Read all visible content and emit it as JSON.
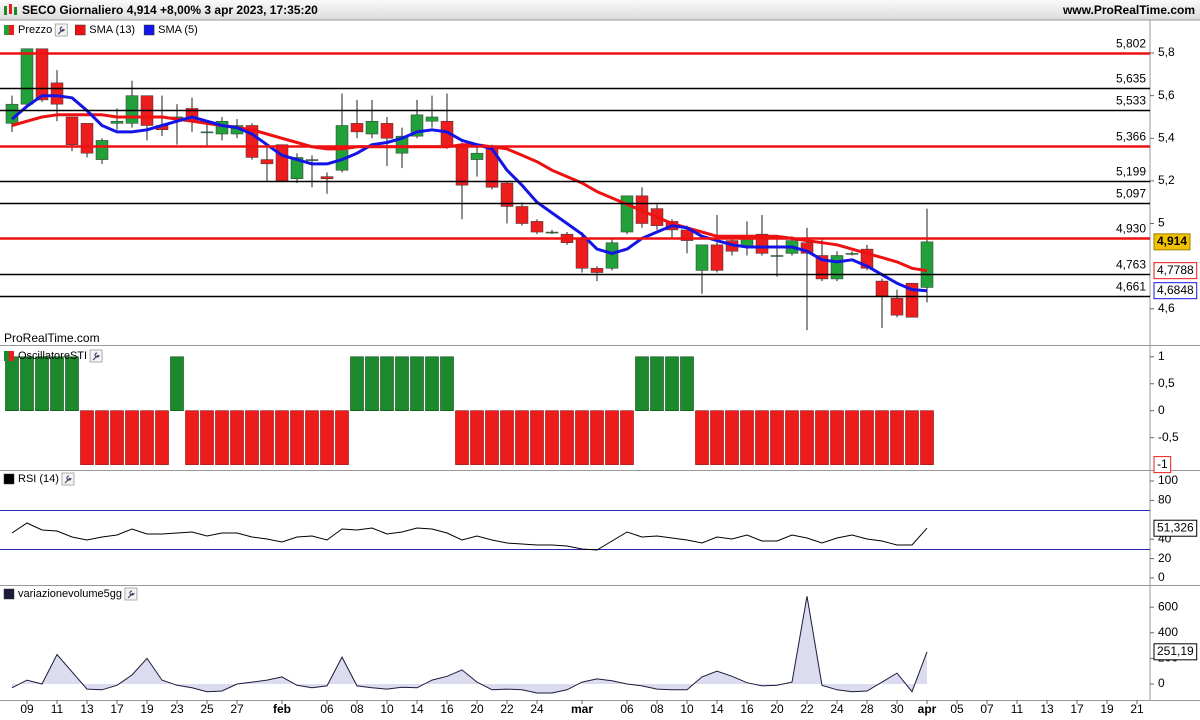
{
  "header": {
    "title": "SECO Giornaliero 4,914 +8,00% 3 apr 2023, 17:35:20",
    "site": "www.ProRealTime.com"
  },
  "chart_data": [
    {
      "type": "candlestick",
      "watermark": "ProRealTime.com",
      "categories": [
        null,
        "09",
        null,
        "11",
        null,
        "13",
        null,
        "17",
        null,
        "19",
        null,
        "23",
        null,
        "25",
        null,
        "27",
        null,
        null,
        "feb",
        null,
        null,
        "06",
        null,
        "08",
        null,
        "10",
        null,
        "14",
        null,
        "16",
        null,
        "20",
        null,
        "22",
        null,
        "24",
        null,
        null,
        "mar",
        null,
        null,
        "06",
        null,
        "08",
        null,
        "10",
        null,
        "14",
        null,
        "16",
        null,
        "20",
        null,
        "22",
        null,
        "24",
        null,
        "28",
        null,
        "30",
        null,
        "apr",
        null,
        "05",
        null,
        "07",
        null,
        "11",
        null,
        "13",
        null,
        "17",
        null,
        "19",
        null,
        "21"
      ],
      "series": [
        {
          "name": "Prezzo",
          "up_color": "#22a03a",
          "down_color": "#ec1d1d",
          "last_label": "4,914",
          "last_color": "#f2c200",
          "open": [
            5.47,
            5.56,
            5.82,
            5.66,
            5.5,
            5.47,
            5.3,
            5.47,
            5.47,
            5.6,
            5.46,
            5.5,
            5.54,
            5.43,
            5.42,
            5.42,
            5.46,
            5.3,
            5.37,
            5.21,
            5.3,
            5.22,
            5.25,
            5.47,
            5.42,
            5.47,
            5.33,
            5.41,
            5.48,
            5.48,
            5.37,
            5.3,
            5.36,
            5.19,
            5.08,
            5.01,
            4.96,
            4.95,
            4.93,
            4.79,
            4.79,
            4.96,
            5.13,
            5.07,
            5.01,
            4.97,
            4.78,
            4.9,
            4.92,
            4.89,
            4.95,
            4.85,
            4.86,
            4.91,
            4.85,
            4.74,
            4.86,
            4.88,
            4.73,
            4.65,
            4.72,
            4.7,
            null,
            null,
            null,
            null,
            null,
            null,
            null,
            null,
            null,
            null,
            null,
            null,
            null,
            null
          ],
          "high": [
            5.6,
            5.82,
            5.82,
            5.72,
            5.5,
            5.47,
            5.4,
            5.54,
            5.67,
            5.6,
            5.6,
            5.56,
            5.59,
            5.47,
            5.5,
            5.49,
            5.47,
            5.36,
            5.37,
            5.33,
            5.32,
            5.24,
            5.61,
            5.58,
            5.58,
            5.5,
            5.45,
            5.58,
            5.6,
            5.61,
            5.38,
            5.36,
            5.37,
            5.2,
            5.1,
            5.02,
            4.97,
            4.96,
            4.96,
            4.8,
            4.93,
            5.13,
            5.17,
            5.09,
            5.02,
            4.99,
            4.9,
            5.04,
            4.93,
            5.01,
            5.04,
            4.93,
            4.94,
            4.98,
            4.93,
            4.87,
            4.87,
            4.9,
            4.74,
            4.69,
            4.72,
            5.07,
            null,
            null,
            null,
            null,
            null,
            null,
            null,
            null,
            null,
            null,
            null,
            null,
            null,
            null
          ],
          "low": [
            5.43,
            5.55,
            5.57,
            5.48,
            5.34,
            5.31,
            5.28,
            5.44,
            5.45,
            5.39,
            5.41,
            5.37,
            5.43,
            5.36,
            5.39,
            5.4,
            5.3,
            5.2,
            5.2,
            5.19,
            5.17,
            5.14,
            5.24,
            5.4,
            5.4,
            5.27,
            5.26,
            5.4,
            5.45,
            5.35,
            5.02,
            5.22,
            5.16,
            5.0,
            4.99,
            4.95,
            4.95,
            4.9,
            4.77,
            4.73,
            4.78,
            4.95,
            4.98,
            4.97,
            4.93,
            4.86,
            4.67,
            4.77,
            4.85,
            4.85,
            4.85,
            4.75,
            4.85,
            4.5,
            4.73,
            4.73,
            4.85,
            4.78,
            4.51,
            4.56,
            4.56,
            4.63,
            null,
            null,
            null,
            null,
            null,
            null,
            null,
            null,
            null,
            null,
            null,
            null,
            null,
            null
          ],
          "close": [
            5.56,
            5.82,
            5.58,
            5.56,
            5.37,
            5.33,
            5.39,
            5.48,
            5.6,
            5.46,
            5.44,
            5.5,
            5.48,
            5.43,
            5.48,
            5.46,
            5.31,
            5.28,
            5.2,
            5.31,
            5.3,
            5.21,
            5.46,
            5.43,
            5.48,
            5.4,
            5.41,
            5.51,
            5.5,
            5.36,
            5.18,
            5.33,
            5.17,
            5.08,
            5.0,
            4.96,
            4.96,
            4.91,
            4.79,
            4.77,
            4.91,
            5.13,
            5.0,
            4.99,
            4.97,
            4.92,
            4.9,
            4.78,
            4.87,
            4.94,
            4.86,
            4.85,
            4.92,
            4.86,
            4.74,
            4.85,
            4.86,
            4.79,
            4.66,
            4.57,
            4.56,
            4.914,
            null,
            null,
            null,
            null,
            null,
            null,
            null,
            null,
            null,
            null,
            null,
            null,
            null,
            null
          ]
        },
        {
          "name": "SMA (13)",
          "color": "#ee1111",
          "last_label": "4,7788",
          "values": [
            5.46,
            5.48,
            5.5,
            5.51,
            5.51,
            5.51,
            5.51,
            5.5,
            5.5,
            5.5,
            5.5,
            5.49,
            5.48,
            5.47,
            5.46,
            5.45,
            5.44,
            5.42,
            5.4,
            5.38,
            5.36,
            5.35,
            5.35,
            5.36,
            5.36,
            5.36,
            5.36,
            5.36,
            5.36,
            5.36,
            5.37,
            5.37,
            5.36,
            5.35,
            5.32,
            5.29,
            5.25,
            5.22,
            5.19,
            5.15,
            5.12,
            5.09,
            5.06,
            5.03,
            5.0,
            4.98,
            4.96,
            4.94,
            4.94,
            4.94,
            4.94,
            4.94,
            4.93,
            4.92,
            4.91,
            4.9,
            4.88,
            4.86,
            4.84,
            4.82,
            4.79,
            4.7788,
            null,
            null,
            null,
            null,
            null,
            null,
            null,
            null,
            null,
            null,
            null,
            null,
            null,
            null
          ]
        },
        {
          "name": "SMA (5)",
          "color": "#1414e6",
          "last_label": "4,6848",
          "values": [
            5.49,
            5.55,
            5.6,
            5.6,
            5.59,
            5.53,
            5.46,
            5.43,
            5.43,
            5.44,
            5.46,
            5.48,
            5.5,
            5.48,
            5.46,
            5.45,
            5.42,
            5.37,
            5.32,
            5.3,
            5.28,
            5.28,
            5.3,
            5.33,
            5.37,
            5.38,
            5.4,
            5.43,
            5.44,
            5.43,
            5.39,
            5.37,
            5.35,
            5.25,
            5.18,
            5.1,
            5.05,
            5.0,
            4.95,
            4.88,
            4.86,
            4.88,
            4.93,
            4.96,
            4.99,
            4.98,
            4.94,
            4.92,
            4.9,
            4.89,
            4.89,
            4.89,
            4.89,
            4.87,
            4.83,
            4.82,
            4.83,
            4.8,
            4.76,
            4.72,
            4.69,
            4.6848,
            null,
            null,
            null,
            null,
            null,
            null,
            null,
            null,
            null,
            null,
            null,
            null,
            null,
            null
          ]
        }
      ],
      "levels": [
        {
          "value": 5.802,
          "label": "5,802",
          "color": "#ee1111"
        },
        {
          "value": 5.635,
          "label": "5,635",
          "color": "#000000"
        },
        {
          "value": 5.533,
          "label": "5,533",
          "color": "#000000"
        },
        {
          "value": 5.366,
          "label": "5,366",
          "color": "#ee1111"
        },
        {
          "value": 5.199,
          "label": "5,199",
          "color": "#000000"
        },
        {
          "value": 5.097,
          "label": "5,097",
          "color": "#000000"
        },
        {
          "value": 4.93,
          "label": "4,930",
          "color": "#ee1111"
        },
        {
          "value": 4.763,
          "label": "4,763",
          "color": "#000000"
        },
        {
          "value": 4.661,
          "label": "4,661",
          "color": "#000000"
        }
      ],
      "ylim": [
        4.43,
        5.955
      ],
      "yticks": [
        {
          "value": 4.6,
          "label": "4,6"
        },
        5,
        {
          "value": 5.2,
          "label": "5,2"
        },
        {
          "value": 5.4,
          "label": "5,4"
        },
        {
          "value": 5.6,
          "label": "5,6"
        },
        {
          "value": 5.8,
          "label": "5,8"
        }
      ]
    },
    {
      "type": "bar",
      "title": "OscillatoreSTI",
      "positive_color": "#1c8a2c",
      "negative_color": "#ee1b1b",
      "last_label": "-1",
      "values": [
        1,
        1,
        1,
        1,
        1,
        -1,
        -1,
        -1,
        -1,
        -1,
        -1,
        1,
        -1,
        -1,
        -1,
        -1,
        -1,
        -1,
        -1,
        -1,
        -1,
        -1,
        -1,
        1,
        1,
        1,
        1,
        1,
        1,
        1,
        -1,
        -1,
        -1,
        -1,
        -1,
        -1,
        -1,
        -1,
        -1,
        -1,
        -1,
        -1,
        1,
        1,
        1,
        1,
        -1,
        -1,
        -1,
        -1,
        -1,
        -1,
        -1,
        -1,
        -1,
        -1,
        -1,
        -1,
        -1,
        -1,
        -1,
        -1,
        null,
        null,
        null,
        null,
        null,
        null,
        null,
        null,
        null,
        null,
        null,
        null,
        null,
        null
      ],
      "ylim": [
        -1.1,
        1.2
      ],
      "yticks": [
        {
          "value": -0.5,
          "label": "-0,5"
        },
        0,
        {
          "value": 0.5,
          "label": "0,5"
        },
        1
      ]
    },
    {
      "type": "line",
      "title": "RSI (14)",
      "color": "#000000",
      "last_label": "51,326",
      "values": [
        46.4,
        56.7,
        49.5,
        48.5,
        42.3,
        39.2,
        42.3,
        44.3,
        50.5,
        45.4,
        45.4,
        46.4,
        47.4,
        43.3,
        46.4,
        46.4,
        42.3,
        40.2,
        37.1,
        42.3,
        43.3,
        39.2,
        50.5,
        49.5,
        51.5,
        45.4,
        47.4,
        51.5,
        50.5,
        46.4,
        39.2,
        43.3,
        39.2,
        36.1,
        35.1,
        34.0,
        34.0,
        33.0,
        29.9,
        28.9,
        38.1,
        47.4,
        42.3,
        43.3,
        41.2,
        39.2,
        36.1,
        42.3,
        40.2,
        44.3,
        38.1,
        38.1,
        44.3,
        41.2,
        36.1,
        41.2,
        44.3,
        40.2,
        38.1,
        34.0,
        34.0,
        51.326,
        null,
        null,
        null,
        null,
        null,
        null,
        null,
        null,
        null,
        null,
        null,
        null,
        null,
        null
      ],
      "levels": [
        {
          "value": 70,
          "color": "#2828b4"
        },
        {
          "value": 30,
          "color": "#2828b4"
        }
      ],
      "ylim": [
        -7.2,
        110.3
      ],
      "yticks": [
        0,
        20,
        40,
        80,
        100
      ]
    },
    {
      "type": "area",
      "title": "variazionevolume5gg",
      "color": "#1a1a3a",
      "fill": "#dcdcf0",
      "last_label": "251,19",
      "values": [
        -30,
        30,
        0,
        230,
        95,
        -40,
        -45,
        -10,
        70,
        200,
        30,
        -10,
        -30,
        -60,
        -55,
        0,
        15,
        30,
        55,
        -10,
        -30,
        -15,
        210,
        -15,
        -30,
        -40,
        -25,
        -30,
        30,
        60,
        110,
        15,
        -45,
        -40,
        -45,
        -70,
        -70,
        -45,
        15,
        40,
        25,
        0,
        -15,
        -40,
        -45,
        -45,
        55,
        100,
        60,
        10,
        -15,
        -10,
        15,
        685,
        -10,
        -45,
        -60,
        -55,
        15,
        85,
        -60,
        251.19,
        null,
        null,
        null,
        null,
        null,
        null,
        null,
        null,
        null,
        null,
        null,
        null,
        null,
        null
      ],
      "ylim": [
        -125,
        765
      ],
      "yticks": [
        0,
        200,
        400,
        600
      ]
    }
  ]
}
